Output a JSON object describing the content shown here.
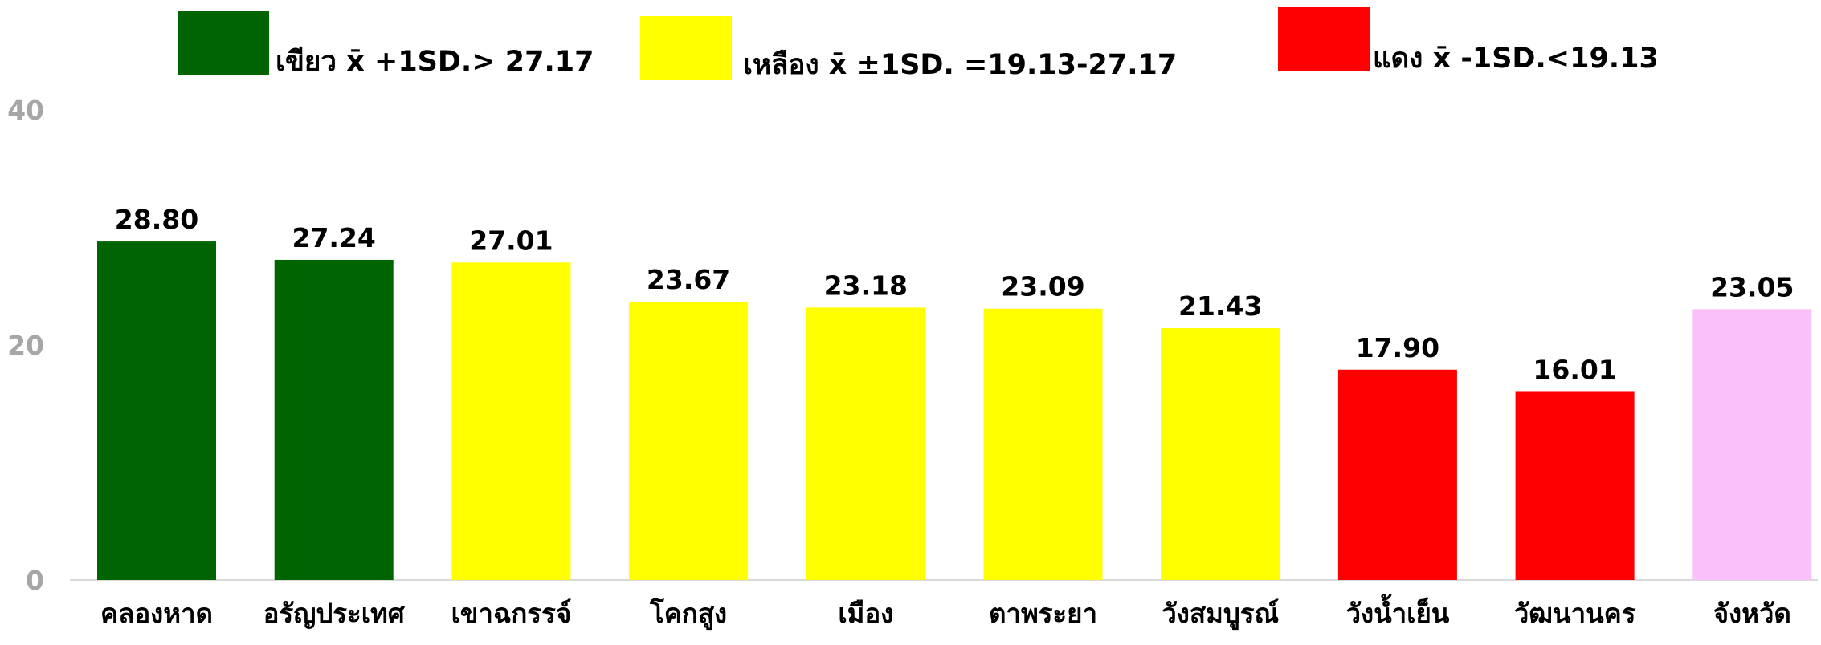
{
  "chart_data": {
    "type": "bar",
    "categories": [
      "คลองหาด",
      "อรัญประเทศ",
      "เขาฉกรรจ์",
      "โคกสูง",
      "เมือง",
      "ตาพระยา",
      "วังสมบูรณ์",
      "วังน้ำเย็น",
      "วัฒนานคร",
      "จังหวัด"
    ],
    "values": [
      28.8,
      27.24,
      27.01,
      23.67,
      23.18,
      23.09,
      21.43,
      17.9,
      16.01,
      23.05
    ],
    "value_labels": [
      "28.80",
      "27.24",
      "27.01",
      "23.67",
      "23.18",
      "23.09",
      "21.43",
      "17.90",
      "16.01",
      "23.05"
    ],
    "colors": [
      "#006400",
      "#006400",
      "#ffff00",
      "#ffff00",
      "#ffff00",
      "#ffff00",
      "#ffff00",
      "#ff0000",
      "#ff0000",
      "#f9c0fa"
    ],
    "ylim": [
      0,
      40
    ],
    "yticks": [
      0,
      20,
      40
    ],
    "grid": false,
    "legend": [
      {
        "label": "เขียว x̄ +1SD.> 27.17",
        "color": "#006400"
      },
      {
        "label": "เหลือง x̄ ±1SD. =19.13-27.17",
        "color": "#ffff00"
      },
      {
        "label": "แดง x̄ -1SD.<19.13",
        "color": "#ff0000"
      }
    ]
  }
}
